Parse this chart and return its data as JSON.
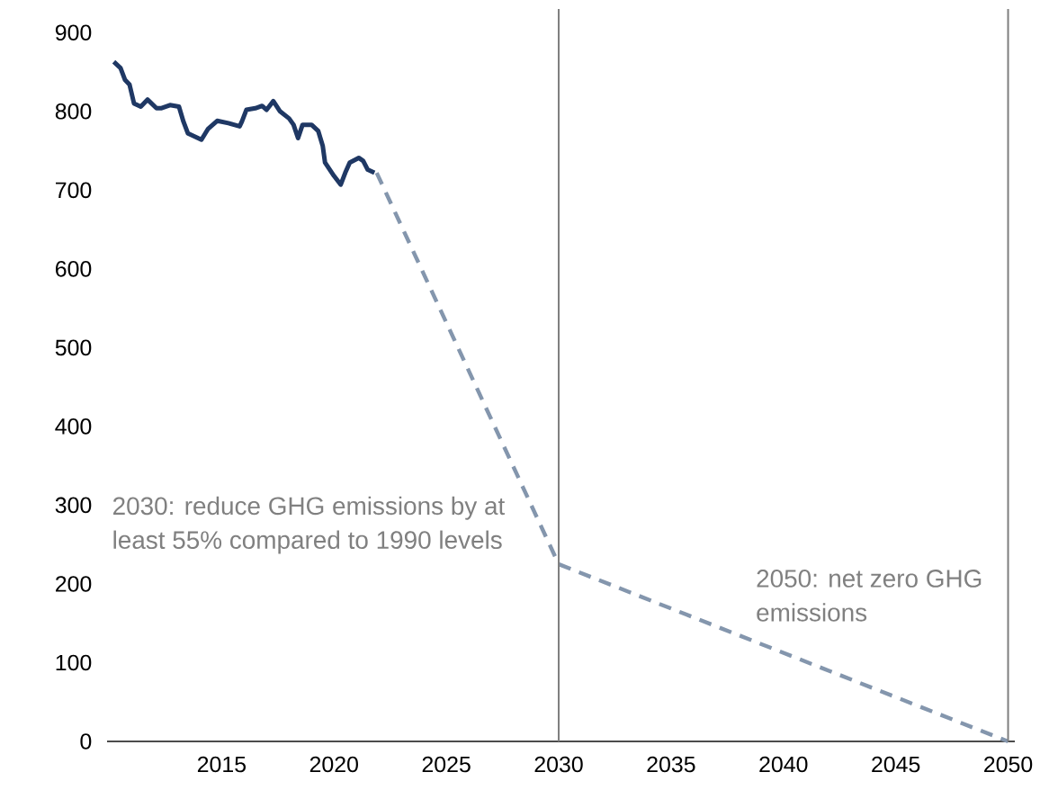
{
  "chart_data": {
    "type": "line",
    "series": [
      {
        "color": "#1f3864",
        "line_style": "solid",
        "x": [
          2010.2,
          2010.5,
          2010.7,
          2010.9,
          2011.1,
          2011.4,
          2011.7,
          2012.1,
          2012.3,
          2012.7,
          2013.1,
          2013.3,
          2013.5,
          2013.8,
          2014.1,
          2014.4,
          2014.8,
          2015.3,
          2015.8,
          2015.9,
          2016.1,
          2016.5,
          2016.8,
          2017.0,
          2017.3,
          2017.6,
          2018.0,
          2018.2,
          2018.4,
          2018.6,
          2019.0,
          2019.3,
          2019.5,
          2019.6,
          2020.0,
          2020.3,
          2020.5,
          2020.7,
          2021.1,
          2021.3,
          2021.5,
          2021.8
        ],
        "values": [
          863,
          855,
          840,
          834,
          810,
          806,
          815,
          804,
          804,
          808,
          806,
          787,
          772,
          768,
          764,
          778,
          788,
          785,
          781,
          787,
          802,
          804,
          807,
          802,
          813,
          800,
          791,
          783,
          766,
          783,
          783,
          775,
          756,
          735,
          718,
          707,
          722,
          735,
          741,
          737,
          726,
          722
        ]
      },
      {
        "color": "#8496ad",
        "line_style": "dashed",
        "x": [
          2021.9,
          2030,
          2050
        ],
        "values": [
          722,
          225,
          0
        ]
      }
    ],
    "xlim": [
      2009.9,
      2050.3
    ],
    "ylim": [
      0,
      930
    ],
    "xticks": [
      2015,
      2020,
      2025,
      2030,
      2035,
      2040,
      2045,
      2050
    ],
    "yticks": [
      0,
      100,
      200,
      300,
      400,
      500,
      600,
      700,
      800,
      900
    ],
    "grid": false,
    "marker": "none",
    "ref_lines": [
      {
        "axis": "x",
        "value": 2030,
        "label": "2030: reduce GHG emissions by at least 55% compared to 1990 levels",
        "color": "#7f7f7f"
      },
      {
        "axis": "x",
        "value": 2050,
        "label": "2050: net zero GHG emissions",
        "color": "#7f7f7f"
      }
    ]
  }
}
